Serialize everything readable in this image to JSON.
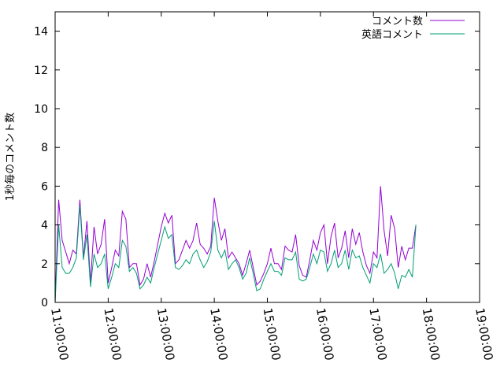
{
  "chart_data": {
    "type": "line",
    "title": "",
    "xlabel": "",
    "ylabel": "1秒毎のコメント数",
    "xlim": [
      "11:00:00",
      "19:00:00"
    ],
    "ylim": [
      0,
      15
    ],
    "x_ticks": [
      "11:00:00",
      "12:00:00",
      "13:00:00",
      "14:00:00",
      "15:00:00",
      "16:00:00",
      "17:00:00",
      "18:00:00",
      "19:00:00"
    ],
    "y_ticks": [
      0,
      2,
      4,
      6,
      8,
      10,
      12,
      14
    ],
    "grid": false,
    "legend_position": "top-right",
    "x_interval": "00:04:00",
    "x_start": "11:00:00",
    "series": [
      {
        "name": "コメント数",
        "color": "#9400d3",
        "values": [
          0,
          5.3,
          3.2,
          2.6,
          2.0,
          2.7,
          2.5,
          5.3,
          2.3,
          4.2,
          1.0,
          3.9,
          2.5,
          3.0,
          4.3,
          1.0,
          1.8,
          2.7,
          2.4,
          4.7,
          4.3,
          1.8,
          2.0,
          2.0,
          0.9,
          1.2,
          2.0,
          1.3,
          2.1,
          3.0,
          3.9,
          4.6,
          4.1,
          4.5,
          2.0,
          2.2,
          2.7,
          3.2,
          2.8,
          3.2,
          4.1,
          3.0,
          2.8,
          2.5,
          2.9,
          5.4,
          4.2,
          3.2,
          3.8,
          2.3,
          2.6,
          2.3,
          2.0,
          1.4,
          2.0,
          2.7,
          1.8,
          0.9,
          1.1,
          1.5,
          2.0,
          2.8,
          2.0,
          2.0,
          1.7,
          2.9,
          2.7,
          2.6,
          3.5,
          1.9,
          1.4,
          1.3,
          2.2,
          3.2,
          2.7,
          3.6,
          4.0,
          2.0,
          3.4,
          4.1,
          2.3,
          2.8,
          3.7,
          2.3,
          3.8,
          3.0,
          3.6,
          2.6,
          1.9,
          1.5,
          2.6,
          2.3,
          6.0,
          3.7,
          2.4,
          4.5,
          3.8,
          1.8,
          2.9,
          2.2,
          2.8,
          2.8,
          4.0
        ]
      },
      {
        "name": "英語コメント",
        "color": "#009e73",
        "values": [
          0,
          4.0,
          1.8,
          1.5,
          1.5,
          1.8,
          2.3,
          5.0,
          2.2,
          3.5,
          0.8,
          2.5,
          1.8,
          2.0,
          2.5,
          0.7,
          1.3,
          2.0,
          1.8,
          3.2,
          2.9,
          1.6,
          1.8,
          1.5,
          0.7,
          0.9,
          1.3,
          1.0,
          1.8,
          2.5,
          3.2,
          3.9,
          3.3,
          3.5,
          1.8,
          1.7,
          1.9,
          2.2,
          2.0,
          2.5,
          2.7,
          2.2,
          1.8,
          2.1,
          2.6,
          4.2,
          2.7,
          2.3,
          2.7,
          1.7,
          2.0,
          2.2,
          1.8,
          1.2,
          1.5,
          2.3,
          1.5,
          0.6,
          0.7,
          1.2,
          1.6,
          2.0,
          1.6,
          1.6,
          1.4,
          2.3,
          2.2,
          2.2,
          2.6,
          1.2,
          1.1,
          1.2,
          1.8,
          2.5,
          2.0,
          2.7,
          2.6,
          1.6,
          2.0,
          2.7,
          1.8,
          2.0,
          2.7,
          1.7,
          2.7,
          2.3,
          2.4,
          1.8,
          1.4,
          1.0,
          2.0,
          1.8,
          2.5,
          1.5,
          1.7,
          2.0,
          1.5,
          0.7,
          1.4,
          1.3,
          1.7,
          1.3,
          4.0
        ]
      }
    ]
  }
}
